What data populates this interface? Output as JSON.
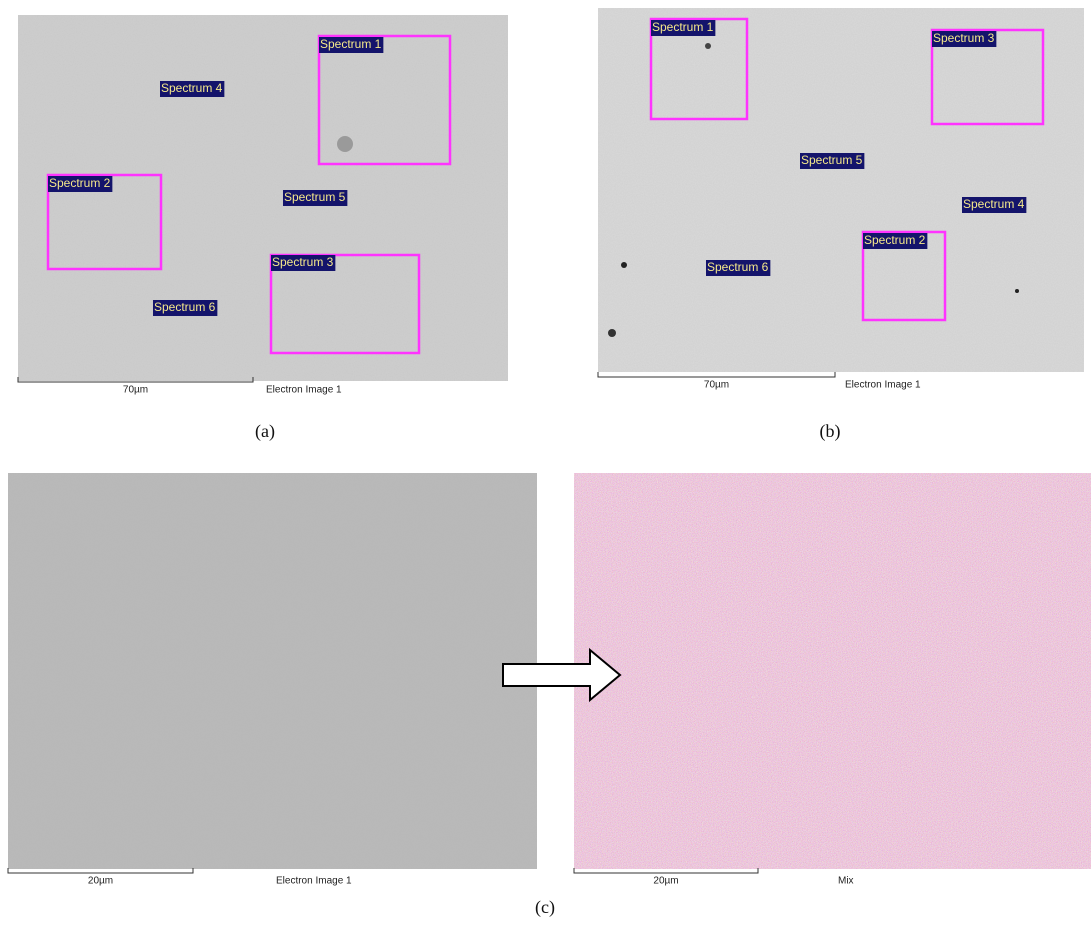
{
  "panels": [
    {
      "caption": "(a)",
      "scale_bar": "70µm",
      "image_label": "Electron Image 1",
      "spectra": [
        "Spectrum 1",
        "Spectrum 4",
        "Spectrum 2",
        "Spectrum 5",
        "Spectrum 3",
        "Spectrum 6"
      ]
    },
    {
      "caption": "(b)",
      "scale_bar": "70µm",
      "image_label": "Electron Image 1",
      "spectra": [
        "Spectrum 1",
        "Spectrum 3",
        "Spectrum 5",
        "Spectrum 4",
        "Spectrum 2",
        "Spectrum 6"
      ]
    },
    {
      "caption": "(c)",
      "images": [
        {
          "scale_bar": "20µm",
          "image_label": "Electron Image 1"
        },
        {
          "scale_bar": "20µm",
          "image_label": "Mix"
        }
      ]
    }
  ]
}
